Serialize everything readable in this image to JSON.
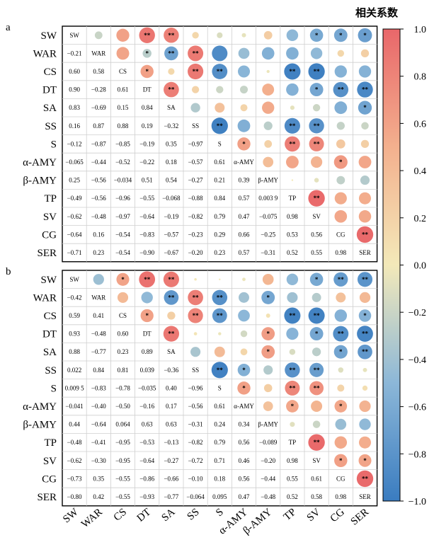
{
  "colorbar": {
    "title": "相关系数",
    "ticks": [
      "1.0",
      "0.8",
      "0.6",
      "0.4",
      "0.2",
      "0.0",
      "−0.2",
      "−0.4",
      "−0.6",
      "−0.8",
      "−1.0"
    ],
    "colors": [
      "#3a7cc0",
      "#8cb7d8",
      "#f3e9b9",
      "#f3b08e",
      "#e9676a"
    ]
  },
  "chart_data": [
    {
      "type": "heatmap",
      "panel_label": "a",
      "variables": [
        "SW",
        "WAR",
        "CS",
        "DT",
        "SA",
        "SS",
        "S",
        "α-AMY",
        "β-AMY",
        "TP",
        "SV",
        "CG",
        "SER"
      ],
      "lower": [
        [],
        [
          "−0.21"
        ],
        [
          "0.60",
          "0.58"
        ],
        [
          "0.90",
          "−0.28",
          "0.61"
        ],
        [
          "0.83",
          "−0.69",
          "0.15",
          "0.84"
        ],
        [
          "0.16",
          "0.87",
          "0.88",
          "0.19",
          "−0.32"
        ],
        [
          "−0.12",
          "−0.87",
          "−0.85",
          "−0.19",
          "0.35",
          "−0.97"
        ],
        [
          "−0.065",
          "−0.44",
          "−0.52",
          "−0.22",
          "0.18",
          "−0.57",
          "0.61"
        ],
        [
          "0.25",
          "−0.56",
          "−0.034",
          "0.51",
          "0.54",
          "−0.27",
          "0.21",
          "0.39"
        ],
        [
          "−0.49",
          "−0.56",
          "−0.96",
          "−0.55",
          "−0.068",
          "−0.88",
          "0.84",
          "0.57",
          "0.003 9"
        ],
        [
          "−0.62",
          "−0.48",
          "−0.97",
          "−0.64",
          "−0.19",
          "−0.82",
          "0.79",
          "0.47",
          "−0.075",
          "0.98"
        ],
        [
          "−0.64",
          "0.16",
          "−0.54",
          "−0.83",
          "−0.57",
          "−0.23",
          "0.29",
          "0.66",
          "−0.25",
          "0.53",
          "0.56"
        ],
        [
          "−0.71",
          "0.23",
          "−0.54",
          "−0.90",
          "−0.67",
          "−0.20",
          "0.23",
          "0.57",
          "−0.31",
          "0.52",
          "0.55",
          "0.98"
        ]
      ],
      "upper_stars": [
        [
          "",
          "",
          "**",
          "**",
          "",
          "",
          "",
          "",
          "",
          "*",
          "*",
          "*"
        ],
        [
          "",
          "*",
          "**",
          "**",
          "",
          "",
          "",
          "",
          "",
          "",
          " "
        ],
        [
          "*",
          "",
          "**",
          "**",
          "",
          "",
          "**",
          "**",
          "",
          ""
        ],
        [
          "**",
          "",
          "",
          "",
          "",
          "",
          "*",
          "**",
          "**"
        ],
        [
          "",
          "",
          "",
          "",
          "",
          "",
          "",
          "*"
        ],
        [
          "**",
          "",
          "",
          "**",
          "**",
          "",
          ""
        ],
        [
          "*",
          "",
          "**",
          "**",
          "",
          ""
        ],
        [
          "",
          "",
          "",
          "*",
          ""
        ],
        [
          "",
          "",
          "",
          ""
        ],
        [
          "**",
          "",
          ""
        ],
        [
          "",
          ""
        ],
        [
          "**"
        ]
      ]
    },
    {
      "type": "heatmap",
      "panel_label": "b",
      "variables": [
        "SW",
        "WAR",
        "CS",
        "DT",
        "SA",
        "SS",
        "S",
        "α-AMY",
        "β-AMY",
        "TP",
        "SV",
        "CG",
        "SER"
      ],
      "lower": [
        [],
        [
          "−0.42"
        ],
        [
          "0.59",
          "0.41"
        ],
        [
          "0.93",
          "−0.48",
          "0.60"
        ],
        [
          "0.88",
          "−0.77",
          "0.23",
          "0.89"
        ],
        [
          "0.022",
          "0.84",
          "0.81",
          "0.039",
          "−0.36"
        ],
        [
          "0.009 5",
          "−0.83",
          "−0.78",
          "−0.035",
          "0.40",
          "−0.96"
        ],
        [
          "−0.041",
          "−0.40",
          "−0.50",
          "−0.16",
          "0.17",
          "−0.56",
          "0.61"
        ],
        [
          "0.44",
          "−0.64",
          "0.064",
          "0.63",
          "0.63",
          "−0.31",
          "0.24",
          "0.34"
        ],
        [
          "−0.48",
          "−0.41",
          "−0.95",
          "−0.53",
          "−0.13",
          "−0.82",
          "0.79",
          "0.56",
          "−0.089"
        ],
        [
          "−0.62",
          "−0.30",
          "−0.95",
          "−0.64",
          "−0.27",
          "−0.72",
          "0.71",
          "0.46",
          "−0.20",
          "0.98"
        ],
        [
          "−0.73",
          "0.35",
          "−0.55",
          "−0.86",
          "−0.66",
          "−0.10",
          "0.18",
          "0.56",
          "−0.44",
          "0.55",
          "0.61"
        ],
        [
          "−0.80",
          "0.42",
          "−0.55",
          "−0.93",
          "−0.77",
          "−0.064",
          "0.095",
          "0.47",
          "−0.48",
          "0.52",
          "0.58",
          "0.98"
        ]
      ],
      "upper_stars": [
        [
          "",
          "*",
          "**",
          "**",
          "",
          "",
          "",
          "",
          "",
          "*",
          "**",
          "**"
        ],
        [
          "",
          "",
          "**",
          "**",
          "**",
          "",
          "*",
          "",
          "",
          "",
          ""
        ],
        [
          "*",
          "",
          "**",
          "**",
          "",
          "",
          "**",
          "**",
          "",
          "*"
        ],
        [
          "**",
          "",
          "",
          "",
          "*",
          "",
          "*",
          "**",
          "**"
        ],
        [
          "",
          "",
          "",
          "*",
          "",
          "",
          "*",
          "**"
        ],
        [
          "**",
          "*",
          "",
          "**",
          "**",
          "",
          ""
        ],
        [
          "*",
          "",
          "**",
          "**",
          "",
          ""
        ],
        [
          "",
          "*",
          "",
          "*",
          ""
        ],
        [
          "",
          "",
          "",
          " "
        ],
        [
          "**",
          "",
          ""
        ],
        [
          "*",
          "*"
        ],
        [
          "**"
        ]
      ]
    }
  ]
}
